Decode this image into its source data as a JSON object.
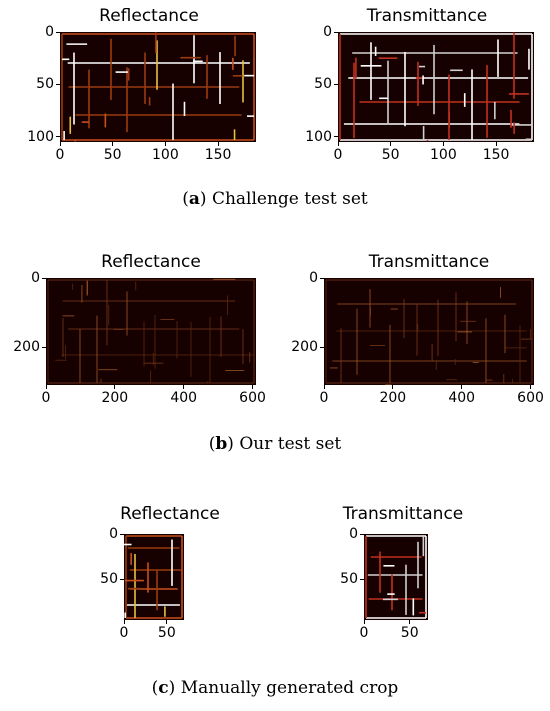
{
  "panels": [
    {
      "caption_letter": "a",
      "caption_text": " Challenge test set",
      "plots": [
        {
          "title": "Reflectance",
          "x_ticks": [
            "0",
            "50",
            "100",
            "150"
          ],
          "y_ticks": [
            "0",
            "50",
            "100"
          ],
          "xlim": [
            0,
            186
          ],
          "ylim": [
            0,
            105
          ],
          "palette": "reflect"
        },
        {
          "title": "Transmittance",
          "x_ticks": [
            "0",
            "50",
            "100",
            "150"
          ],
          "y_ticks": [
            "0",
            "50",
            "100"
          ],
          "xlim": [
            0,
            186
          ],
          "ylim": [
            0,
            105
          ],
          "palette": "transmit"
        }
      ]
    },
    {
      "caption_letter": "b",
      "caption_text": " Our test set",
      "plots": [
        {
          "title": "Reflectance",
          "x_ticks": [
            "0",
            "200",
            "400",
            "600"
          ],
          "y_ticks": [
            "0",
            "200"
          ],
          "xlim": [
            0,
            610
          ],
          "ylim": [
            0,
            310
          ],
          "palette": "dim"
        },
        {
          "title": "Transmittance",
          "x_ticks": [
            "0",
            "200",
            "400",
            "600"
          ],
          "y_ticks": [
            "0",
            "200"
          ],
          "xlim": [
            0,
            610
          ],
          "ylim": [
            0,
            310
          ],
          "palette": "dim"
        }
      ]
    },
    {
      "caption_letter": "c",
      "caption_text": " Manually generated crop",
      "plots": [
        {
          "title": "Reflectance",
          "x_ticks": [
            "0",
            "50"
          ],
          "y_ticks": [
            "0",
            "50"
          ],
          "xlim": [
            0,
            70
          ],
          "ylim": [
            0,
            95
          ],
          "palette": "reflect"
        },
        {
          "title": "Transmittance",
          "x_ticks": [
            "0",
            "50"
          ],
          "y_ticks": [
            "0",
            "50"
          ],
          "xlim": [
            0,
            70
          ],
          "ylim": [
            0,
            95
          ],
          "palette": "transmit"
        }
      ]
    }
  ],
  "colors": {
    "image_background": "#170000",
    "reflect_lines": [
      "#c8501e",
      "#e8c040",
      "#ffffff",
      "#9a3a10"
    ],
    "transmit_lines": [
      "#ffffff",
      "#d0d0d0",
      "#c03020"
    ],
    "dim_lines": [
      "#7a3a1a",
      "#a05828",
      "#5a2a10"
    ]
  }
}
